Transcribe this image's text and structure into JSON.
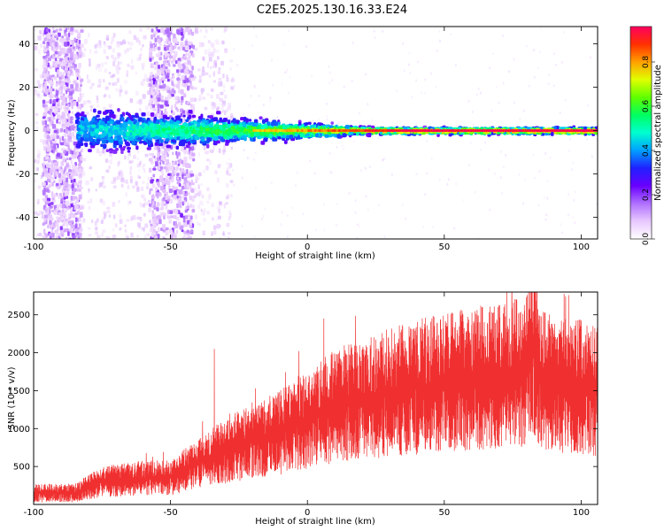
{
  "title": "C2E5.2025.130.16.33.E24",
  "chart_data": [
    {
      "type": "heatmap",
      "xlabel": "Height of straight line (km)",
      "ylabel": "Frequency (Hz)",
      "xlim": [
        -100,
        106
      ],
      "ylim": [
        -50,
        48
      ],
      "xticks": [
        -100,
        -50,
        0,
        50,
        100
      ],
      "yticks": [
        -40,
        -20,
        0,
        20,
        40
      ],
      "colorbar": {
        "label": "Normalized spectral amplitude",
        "range": [
          0,
          0.96
        ],
        "ticks": [
          "0.0",
          "0.2",
          "0.4",
          "0.6",
          "0.8"
        ],
        "colors": [
          "#ffffff",
          "#e8c8ff",
          "#b070ff",
          "#6a00ff",
          "#2020ff",
          "#00a0ff",
          "#00ffd0",
          "#00ff60",
          "#60ff00",
          "#e0ff00",
          "#ffa000",
          "#ff3000",
          "#ff0060"
        ]
      },
      "features": {
        "carrier_frequency_hz": 0,
        "carrier_start_km": -20,
        "band_halfwidth_hz": [
          12,
          1.5
        ],
        "noise_region_km": [
          -100,
          -40
        ]
      }
    },
    {
      "type": "line",
      "xlabel": "Height of straight line (km)",
      "ylabel": "SNR (10 * v/v)",
      "xlim": [
        -100,
        106
      ],
      "ylim": [
        0,
        2800
      ],
      "xticks": [
        -100,
        -50,
        0,
        50,
        100
      ],
      "yticks": [
        500,
        1000,
        1500,
        2000,
        2500
      ],
      "color": "#f03030",
      "trend": {
        "x": [
          -100,
          -85,
          -75,
          -60,
          -50,
          -40,
          -30,
          -20,
          -10,
          0,
          10,
          20,
          30,
          40,
          50,
          60,
          70,
          80,
          82,
          85,
          90,
          100,
          106
        ],
        "y": [
          150,
          150,
          300,
          350,
          350,
          550,
          700,
          850,
          950,
          1100,
          1300,
          1400,
          1480,
          1550,
          1600,
          1650,
          1700,
          1750,
          2200,
          1650,
          1600,
          1550,
          1500
        ]
      },
      "spikes": [
        {
          "x": -34,
          "y": 2050
        },
        {
          "x": 6,
          "y": 2450
        },
        {
          "x": 82,
          "y": 2780
        }
      ]
    }
  ]
}
